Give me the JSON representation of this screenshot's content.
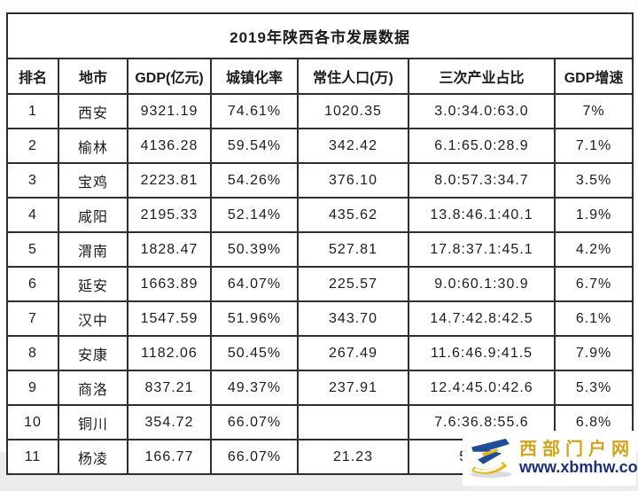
{
  "chart_data": {
    "type": "table",
    "title": "2019年陕西各市发展数据",
    "columns": [
      "排名",
      "地市",
      "GDP(亿元)",
      "城镇化率",
      "常住人口(万)",
      "三次产业占比",
      "GDP增速"
    ],
    "rows": [
      [
        "1",
        "西安",
        "9321.19",
        "74.61%",
        "1020.35",
        "3.0:34.0:63.0",
        "7%"
      ],
      [
        "2",
        "榆林",
        "4136.28",
        "59.54%",
        "342.42",
        "6.1:65.0:28.9",
        "7.1%"
      ],
      [
        "3",
        "宝鸡",
        "2223.81",
        "54.26%",
        "376.10",
        "8.0:57.3:34.7",
        "3.5%"
      ],
      [
        "4",
        "咸阳",
        "2195.33",
        "52.14%",
        "435.62",
        "13.8:46.1:40.1",
        "1.9%"
      ],
      [
        "5",
        "渭南",
        "1828.47",
        "50.39%",
        "527.81",
        "17.8:37.1:45.1",
        "4.2%"
      ],
      [
        "6",
        "延安",
        "1663.89",
        "64.07%",
        "225.57",
        "9.0:60.1:30.9",
        "6.7%"
      ],
      [
        "7",
        "汉中",
        "1547.59",
        "51.96%",
        "343.70",
        "14.7:42.8:42.5",
        "6.1%"
      ],
      [
        "8",
        "安康",
        "1182.06",
        "50.45%",
        "267.49",
        "11.6:46.9:41.5",
        "7.9%"
      ],
      [
        "9",
        "商洛",
        "837.21",
        "49.37%",
        "237.91",
        "12.4:45.0:42.6",
        "5.3%"
      ],
      [
        "10",
        "铜川",
        "354.72",
        "66.07%",
        "",
        "7.6:36.8:55.6",
        "6.8%"
      ],
      [
        "11",
        "杨凌",
        "166.77",
        "66.07%",
        "21.23",
        "5.1:47",
        ""
      ]
    ]
  },
  "watermark": {
    "site_name": "西部门户网",
    "site_url": "www.xbmhw.com",
    "logo_icon": "xbmhw-logo",
    "colors": {
      "site_name": "#d2a31b",
      "site_url": "#1c2f7a",
      "logo_blue": "#1f4e96",
      "logo_yellow": "#e3b818"
    }
  }
}
